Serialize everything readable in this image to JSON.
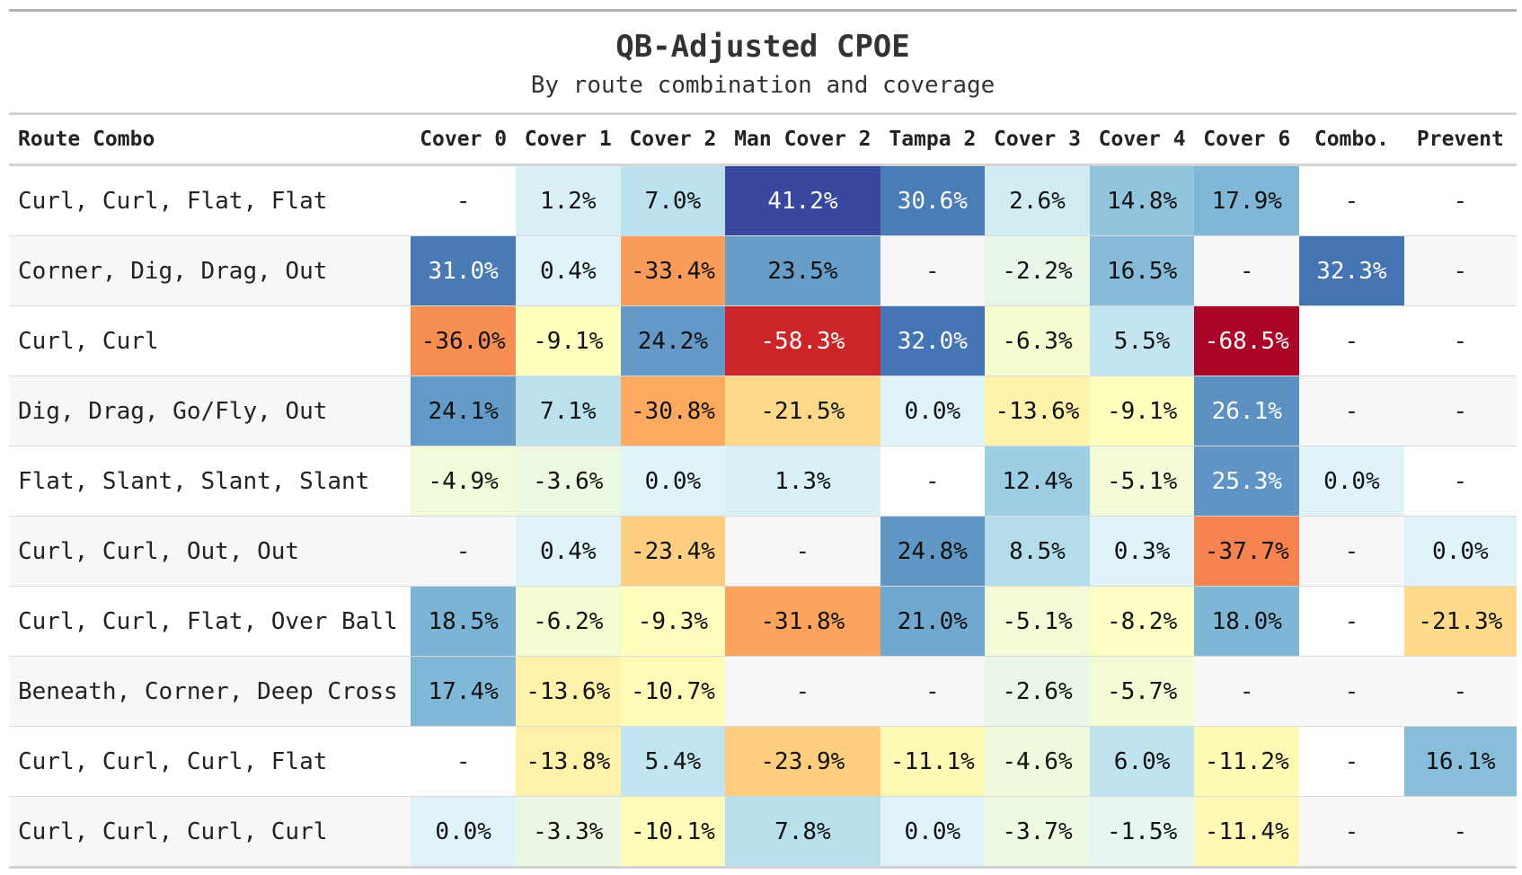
{
  "chart_data": {
    "type": "table",
    "title": "QB-Adjusted CPOE",
    "subtitle": "By route combination and coverage",
    "columns": [
      "Route Combo",
      "Cover 0",
      "Cover 1",
      "Cover 2",
      "Man Cover 2",
      "Tampa 2",
      "Cover 3",
      "Cover 4",
      "Cover 6",
      "Combo.",
      "Prevent"
    ],
    "rows": [
      {
        "route": "Curl, Curl, Flat, Flat",
        "values": [
          null,
          1.2,
          7.0,
          41.2,
          30.6,
          2.6,
          14.8,
          17.9,
          null,
          null
        ]
      },
      {
        "route": "Corner, Dig, Drag, Out",
        "values": [
          31.0,
          0.4,
          -33.4,
          23.5,
          null,
          -2.2,
          16.5,
          null,
          32.3,
          null
        ]
      },
      {
        "route": "Curl, Curl",
        "values": [
          -36.0,
          -9.1,
          24.2,
          -58.3,
          32.0,
          -6.3,
          5.5,
          -68.5,
          null,
          null
        ]
      },
      {
        "route": "Dig, Drag, Go/Fly, Out",
        "values": [
          24.1,
          7.1,
          -30.8,
          -21.5,
          0.0,
          -13.6,
          -9.1,
          26.1,
          null,
          null
        ]
      },
      {
        "route": "Flat, Slant, Slant, Slant",
        "values": [
          -4.9,
          -3.6,
          0.0,
          1.3,
          null,
          12.4,
          -5.1,
          25.3,
          0.0,
          null
        ]
      },
      {
        "route": "Curl, Curl, Out, Out",
        "values": [
          null,
          0.4,
          -23.4,
          null,
          24.8,
          8.5,
          0.3,
          -37.7,
          null,
          0.0
        ]
      },
      {
        "route": "Curl, Curl, Flat, Over Ball",
        "values": [
          18.5,
          -6.2,
          -9.3,
          -31.8,
          21.0,
          -5.1,
          -8.2,
          18.0,
          null,
          -21.3
        ]
      },
      {
        "route": "Beneath, Corner, Deep Cross",
        "values": [
          17.4,
          -13.6,
          -10.7,
          null,
          null,
          -2.6,
          -5.7,
          null,
          null,
          null
        ]
      },
      {
        "route": "Curl, Curl, Curl, Flat",
        "values": [
          null,
          -13.8,
          5.4,
          -23.9,
          -11.1,
          -4.6,
          6.0,
          -11.2,
          null,
          16.1
        ]
      },
      {
        "route": "Curl, Curl, Curl, Curl",
        "values": [
          0.0,
          -3.3,
          -10.1,
          7.8,
          0.0,
          -3.7,
          -1.5,
          -11.4,
          null,
          null
        ]
      }
    ],
    "missing_symbol": "-",
    "value_suffix": "%",
    "color_scale": "diverging-RdYlBu",
    "color_range": [
      -70,
      45
    ]
  }
}
